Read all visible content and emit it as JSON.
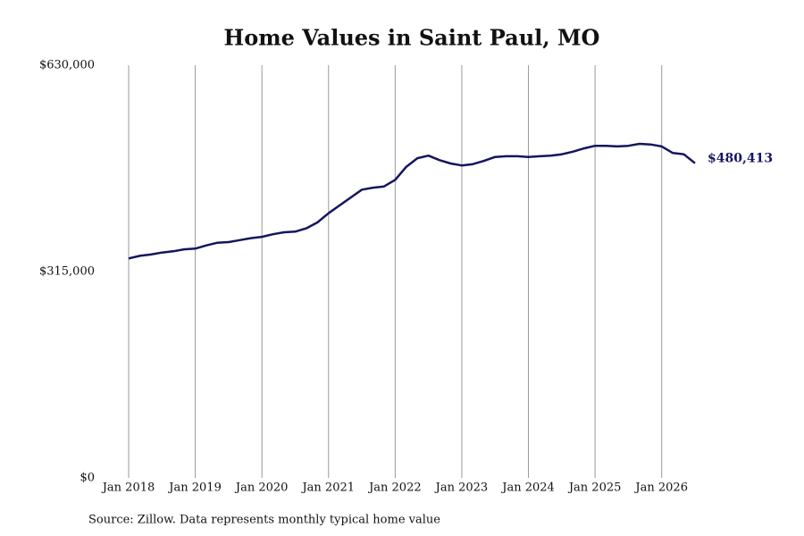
{
  "chart_data": {
    "type": "line",
    "title": "Home Values in Saint Paul, MO",
    "note": "Source: Zillow. Data represents monthly typical home value",
    "x": [
      2018,
      2018.167,
      2018.333,
      2018.5,
      2018.667,
      2018.833,
      2019,
      2019.167,
      2019.333,
      2019.5,
      2019.667,
      2019.833,
      2020,
      2020.167,
      2020.333,
      2020.5,
      2020.667,
      2020.833,
      2021,
      2021.167,
      2021.333,
      2021.5,
      2021.667,
      2021.833,
      2022,
      2022.167,
      2022.333,
      2022.5,
      2022.667,
      2022.833,
      2023,
      2023.167,
      2023.333,
      2023.5,
      2023.667,
      2023.833,
      2024,
      2024.167,
      2024.333,
      2024.5,
      2024.667,
      2024.833,
      2025,
      2025.167,
      2025.333,
      2025.5,
      2025.667,
      2025.833,
      2026,
      2026.167,
      2026.333,
      2026.5
    ],
    "values": [
      335000,
      339000,
      341000,
      344000,
      346000,
      349000,
      350000,
      355000,
      359000,
      360000,
      363000,
      366000,
      368000,
      372000,
      375000,
      376000,
      381000,
      390000,
      404000,
      416000,
      428000,
      440000,
      443000,
      445000,
      455000,
      475000,
      488000,
      492000,
      485000,
      480000,
      477000,
      479000,
      484000,
      490000,
      491000,
      491000,
      490000,
      491000,
      492000,
      494000,
      498000,
      503000,
      507000,
      507000,
      506000,
      507000,
      510000,
      509000,
      506000,
      496000,
      494000,
      480413
    ],
    "value_labels": [
      null,
      null,
      null,
      null,
      null,
      null,
      null,
      null,
      null,
      null,
      null,
      null,
      null,
      null,
      null,
      null,
      null,
      null,
      null,
      null,
      null,
      null,
      null,
      null,
      null,
      null,
      null,
      null,
      null,
      null,
      null,
      null,
      null,
      null,
      null,
      null,
      null,
      null,
      null,
      null,
      null,
      null,
      null,
      null,
      null,
      null,
      null,
      null,
      null,
      null,
      null,
      "$480,413"
    ],
    "color": "#15155e",
    "xlim": [
      2018,
      2026.5
    ],
    "xticks": [
      {
        "value": 2018,
        "label": "Jan 2018"
      },
      {
        "value": 2019,
        "label": "Jan 2019"
      },
      {
        "value": 2020,
        "label": "Jan 2020"
      },
      {
        "value": 2021,
        "label": "Jan 2021"
      },
      {
        "value": 2022,
        "label": "Jan 2022"
      },
      {
        "value": 2023,
        "label": "Jan 2023"
      },
      {
        "value": 2024,
        "label": "Jan 2024"
      },
      {
        "value": 2025,
        "label": "Jan 2025"
      },
      {
        "value": 2026,
        "label": "Jan 2026"
      }
    ],
    "ylim": [
      0,
      630000
    ],
    "yticks": [
      {
        "value": 0,
        "label": "$0"
      },
      {
        "value": 315000,
        "label": "$315,000"
      },
      {
        "value": 630000,
        "label": "$630,000"
      }
    ],
    "grid": "x"
  }
}
